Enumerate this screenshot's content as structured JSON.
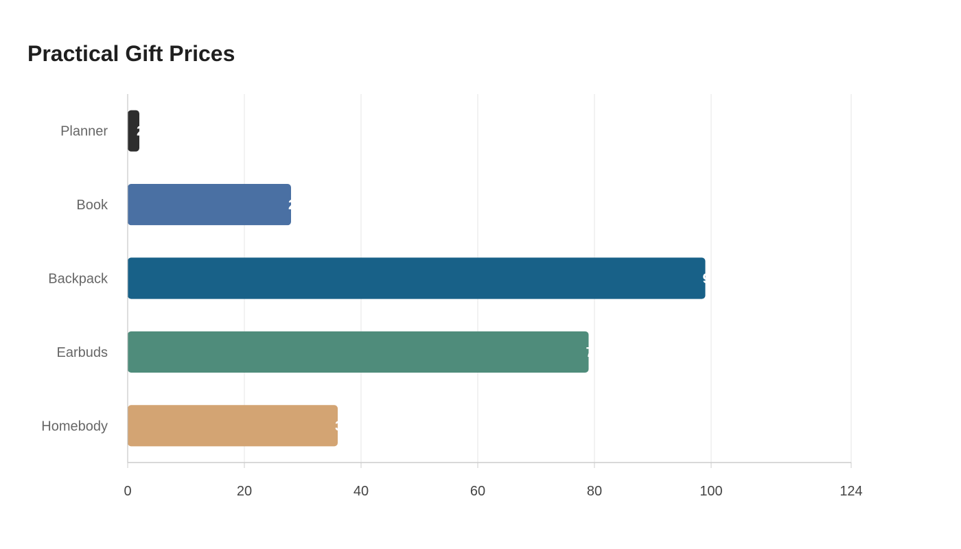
{
  "chart_data": {
    "type": "bar",
    "orientation": "horizontal",
    "title": "Practical Gift Prices",
    "xlabel": "",
    "ylabel": "",
    "categories": [
      "Planner",
      "Book",
      "Backpack",
      "Earbuds",
      "Homebody"
    ],
    "values": [
      2,
      28,
      99,
      79,
      36
    ],
    "colors": [
      "#2e2e2e",
      "#4a70a3",
      "#186188",
      "#4f8c7b",
      "#d3a473"
    ],
    "xlim": [
      0,
      124
    ],
    "xticks": [
      0,
      20,
      40,
      60,
      80,
      100,
      124
    ],
    "grid": true,
    "legend": "none"
  }
}
